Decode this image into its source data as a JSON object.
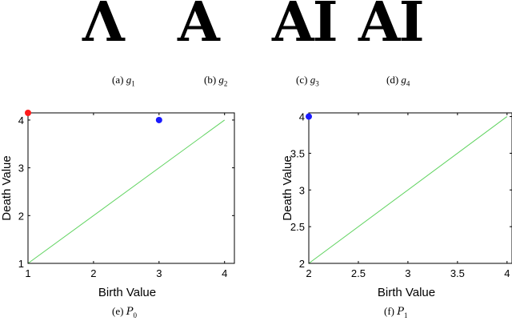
{
  "glyphs": [
    {
      "id": "g1",
      "text": "Λ"
    },
    {
      "id": "g2",
      "text": "A"
    },
    {
      "id": "g3",
      "text": "AI"
    },
    {
      "id": "g4",
      "text": "AI"
    }
  ],
  "sub_captions": [
    {
      "prefix": "(a)",
      "var": "g",
      "sub": "1"
    },
    {
      "prefix": "(b)",
      "var": "g",
      "sub": "2"
    },
    {
      "prefix": "(c)",
      "var": "g",
      "sub": "3"
    },
    {
      "prefix": "(d)",
      "var": "g",
      "sub": "4"
    }
  ],
  "colors": {
    "axis": "#000000",
    "diagonal": "#5fd35f",
    "red": "#ff1a1a",
    "blue": "#1a1aff"
  },
  "chart_data": [
    {
      "type": "scatter",
      "caption_prefix": "(e)",
      "caption_var": "P",
      "caption_sub": "0",
      "xlabel": "Birth Value",
      "ylabel": "Death Value",
      "xlim": [
        1,
        4.15
      ],
      "ylim": [
        1,
        4.15
      ],
      "xticks": [
        "1",
        "2",
        "3",
        "4"
      ],
      "yticks": [
        "1",
        "2",
        "3",
        "4"
      ],
      "xtick_values": [
        1,
        2,
        3,
        4
      ],
      "ytick_values": [
        1,
        2,
        3,
        4
      ],
      "diagonal": [
        [
          1,
          1
        ],
        [
          4,
          4
        ]
      ],
      "points": [
        {
          "x": 1,
          "y": 4.15,
          "color": "red"
        },
        {
          "x": 3,
          "y": 4,
          "color": "blue"
        }
      ]
    },
    {
      "type": "scatter",
      "caption_prefix": "(f)",
      "caption_var": "P",
      "caption_sub": "1",
      "xlabel": "Birth Value",
      "ylabel": "Death Value",
      "xlim": [
        2,
        4.05
      ],
      "ylim": [
        2,
        4.05
      ],
      "xticks": [
        "2",
        "2.5",
        "3",
        "3.5",
        "4"
      ],
      "yticks": [
        "2",
        "2.5",
        "3",
        "3.5",
        "4"
      ],
      "xtick_values": [
        2,
        2.5,
        3,
        3.5,
        4
      ],
      "ytick_values": [
        2,
        2.5,
        3,
        3.5,
        4
      ],
      "diagonal": [
        [
          2,
          2
        ],
        [
          4,
          4
        ]
      ],
      "points": [
        {
          "x": 2,
          "y": 4,
          "color": "blue"
        }
      ]
    }
  ]
}
